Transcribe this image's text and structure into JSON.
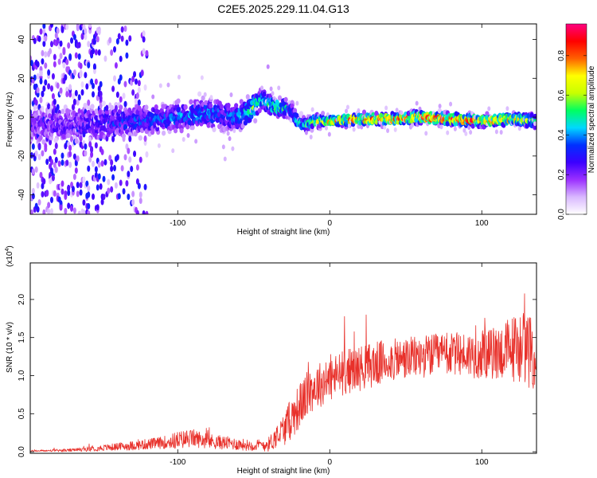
{
  "title": "C2E5.2025.229.11.04.G13",
  "chart_data": [
    {
      "type": "heatmap",
      "xlabel": "Height of straight line (km)",
      "ylabel": "Frequency (Hz)",
      "xlim": [
        -197,
        136
      ],
      "ylim": [
        -50,
        48
      ],
      "x_ticks": [
        "-100",
        "0",
        "100"
      ],
      "x_tick_values": [
        -100,
        0,
        100
      ],
      "y_ticks": [
        "40",
        "20",
        "0",
        "-20",
        "-40"
      ],
      "y_tick_values": [
        40,
        20,
        0,
        -20,
        -40
      ],
      "colorbar": {
        "label": "Normalized spectral amplitude",
        "range": [
          0.0,
          0.96
        ],
        "ticks": [
          "0.0",
          "0.2",
          "0.4",
          "0.6",
          "0.8"
        ],
        "tick_values": [
          0.0,
          0.2,
          0.4,
          0.6,
          0.8
        ],
        "colors": [
          "#ffffff",
          "#d9b8ff",
          "#9b30ff",
          "#3b00ff",
          "#0030ff",
          "#00d8ff",
          "#00ff60",
          "#c8ff00",
          "#ffff00",
          "#ff6000",
          "#ff0000",
          "#ff0080"
        ]
      },
      "ridge": {
        "x": [
          -170,
          -150,
          -130,
          -110,
          -100,
          -90,
          -80,
          -70,
          -60,
          -50,
          -45,
          -40,
          -35,
          -30,
          -25,
          -20,
          -15,
          -10,
          0,
          20,
          40,
          60,
          80,
          100,
          120,
          136
        ],
        "y": [
          -4,
          -3,
          -2,
          -1,
          0,
          1,
          2,
          1,
          0,
          5,
          9,
          7,
          5,
          5,
          3,
          -3,
          -4,
          -2,
          -2,
          -1,
          -1,
          0,
          -1,
          -2,
          -1,
          -2
        ],
        "amplitude": [
          0.25,
          0.3,
          0.35,
          0.35,
          0.4,
          0.4,
          0.4,
          0.35,
          0.4,
          0.55,
          0.45,
          0.5,
          0.55,
          0.5,
          0.4,
          0.45,
          0.55,
          0.6,
          0.7,
          0.8,
          0.85,
          0.85,
          0.85,
          0.8,
          0.75,
          0.6
        ],
        "spread": [
          10,
          9,
          8,
          8,
          8,
          8,
          8,
          8,
          8,
          7,
          6,
          5,
          5,
          5,
          5,
          4,
          4,
          3.5,
          3,
          3,
          3,
          3,
          3,
          3,
          3,
          3.5
        ]
      }
    },
    {
      "type": "line",
      "xlabel": "Height of straight line (km)",
      "ylabel": "SNR (10 * v/v)",
      "y_scale_label": "(x10",
      "y_scale_exponent": "4",
      "xlim": [
        -197,
        136
      ],
      "ylim": [
        -0.02,
        2.48
      ],
      "x_ticks": [
        "-100",
        "0",
        "100"
      ],
      "x_tick_values": [
        -100,
        0,
        100
      ],
      "y_ticks": [
        "0.0",
        "0.5",
        "1.0",
        "1.5",
        "2.0"
      ],
      "y_tick_values": [
        0.0,
        0.5,
        1.0,
        1.5,
        2.0
      ],
      "color": "#e8302a",
      "series": [
        {
          "x": [
            -197,
            -170,
            -150,
            -130,
            -110,
            -100,
            -90,
            -80,
            -70,
            -60,
            -50,
            -40,
            -35,
            -30,
            -25,
            -20,
            -15,
            -10,
            -5,
            0,
            10,
            20,
            30,
            40,
            50,
            60,
            70,
            80,
            90,
            100,
            110,
            120,
            128,
            136
          ],
          "y": [
            0.01,
            0.02,
            0.05,
            0.08,
            0.12,
            0.15,
            0.18,
            0.14,
            0.12,
            0.1,
            0.08,
            0.1,
            0.2,
            0.3,
            0.45,
            0.6,
            0.75,
            0.85,
            0.9,
            0.95,
            1.05,
            1.1,
            1.15,
            1.2,
            1.22,
            1.25,
            1.27,
            1.28,
            1.28,
            1.27,
            1.3,
            1.35,
            1.4,
            1.2
          ],
          "noise": [
            0.01,
            0.02,
            0.04,
            0.06,
            0.08,
            0.12,
            0.12,
            0.1,
            0.09,
            0.08,
            0.07,
            0.1,
            0.15,
            0.22,
            0.28,
            0.3,
            0.3,
            0.3,
            0.3,
            0.3,
            0.3,
            0.3,
            0.3,
            0.28,
            0.28,
            0.28,
            0.28,
            0.28,
            0.3,
            0.32,
            0.35,
            0.45,
            0.5,
            0.45
          ]
        }
      ]
    }
  ]
}
